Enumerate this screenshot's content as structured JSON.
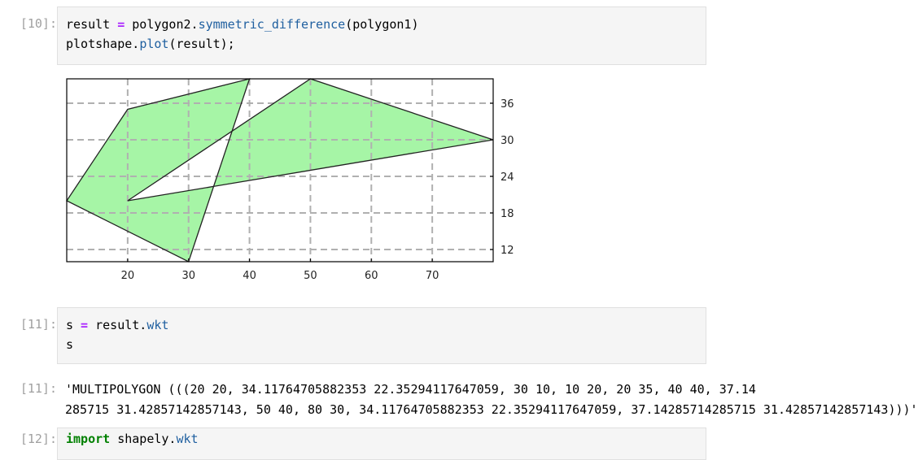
{
  "cells": [
    {
      "prompt": "[10]:",
      "lines": [
        {
          "a": "result",
          "op": " = ",
          "b": "polygon2.",
          "fn": "symmetric_difference",
          "c": "(polygon1)"
        },
        {
          "a": "plotshape.",
          "fn": "plot",
          "c": "(result);"
        }
      ]
    },
    {
      "prompt": "[11]:",
      "lines": [
        {
          "a": "s",
          "op": " = ",
          "b": "result.",
          "fn": "wkt"
        },
        {
          "a": "s"
        }
      ]
    },
    {
      "prompt": "[12]:",
      "lines": [
        {
          "kw": "import",
          "a": " shapely.",
          "fn": "wkt"
        }
      ]
    }
  ],
  "outputs": [
    {
      "prompt": "[11]:",
      "lines": [
        "'MULTIPOLYGON (((20 20, 34.11764705882353 22.35294117647059, 30 10, 10 20, 20 35, 40 40, 37.14",
        "285715 31.42857142857143, 50 40, 80 30, 34.11764705882353 22.35294117647059, 37.14285714285715 31.42857142857143)))'"
      ]
    }
  ],
  "chart_data": {
    "type": "polygon",
    "xlim": [
      10,
      80
    ],
    "ylim": [
      10,
      40
    ],
    "xticks": [
      20,
      30,
      40,
      50,
      60,
      70
    ],
    "yticks": [
      12,
      18,
      24,
      30,
      36
    ],
    "ytick_side": "right",
    "grid": true,
    "grid_style": "dashed",
    "fill_color": "#a6f5a6",
    "edge_color": "#222222",
    "polygons": [
      [
        [
          20,
          20
        ],
        [
          34.11764705882353,
          22.35294117647059
        ],
        [
          30,
          10
        ],
        [
          10,
          20
        ],
        [
          20,
          35
        ],
        [
          40,
          40
        ],
        [
          37.142857142857146,
          31.42857142857143
        ],
        [
          20,
          20
        ]
      ],
      [
        [
          37.142857142857146,
          31.42857142857143
        ],
        [
          50,
          40
        ],
        [
          80,
          30
        ],
        [
          34.11764705882353,
          22.35294117647059
        ],
        [
          37.142857142857146,
          31.42857142857143
        ]
      ]
    ]
  }
}
